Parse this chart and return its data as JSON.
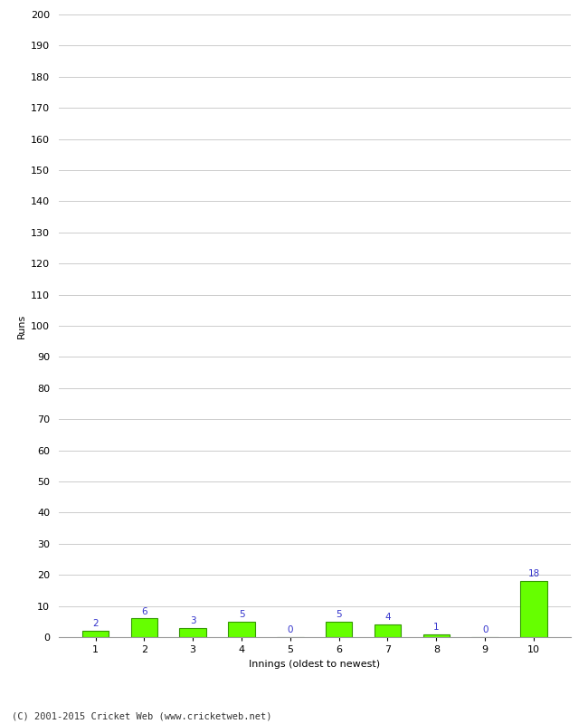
{
  "xlabel": "Innings (oldest to newest)",
  "ylabel": "Runs",
  "categories": [
    "1",
    "2",
    "3",
    "4",
    "5",
    "6",
    "7",
    "8",
    "9",
    "10"
  ],
  "values": [
    2,
    6,
    3,
    5,
    0,
    5,
    4,
    1,
    0,
    18
  ],
  "bar_color": "#66ff00",
  "bar_edge_color": "#339900",
  "label_color": "#3333cc",
  "ylim": [
    0,
    200
  ],
  "yticks": [
    0,
    10,
    20,
    30,
    40,
    50,
    60,
    70,
    80,
    90,
    100,
    110,
    120,
    130,
    140,
    150,
    160,
    170,
    180,
    190,
    200
  ],
  "background_color": "#ffffff",
  "grid_color": "#cccccc",
  "footer_text": "(C) 2001-2015 Cricket Web (www.cricketweb.net)",
  "label_fontsize": 7.5,
  "axis_label_fontsize": 8,
  "tick_fontsize": 8,
  "footer_fontsize": 7.5
}
